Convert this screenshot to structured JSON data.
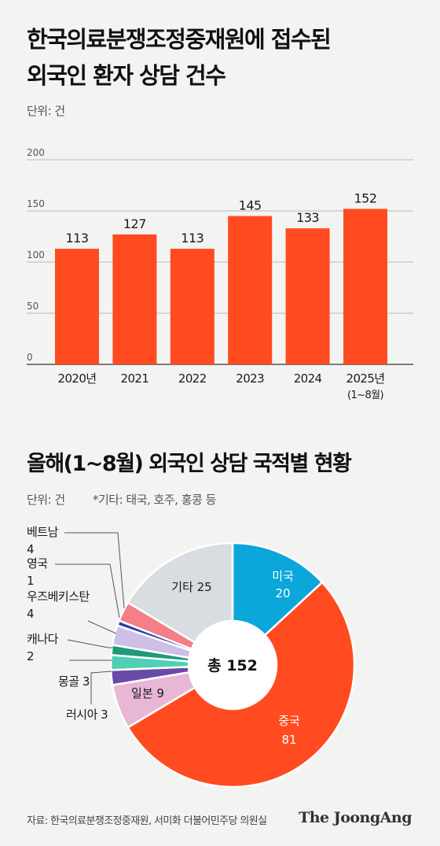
{
  "chart1": {
    "title_line1": "한국의료분쟁조정중재원에 접수된",
    "title_line2": "외국인 환자 상담 건수",
    "unit": "단위: 건"
  },
  "chart2": {
    "title": "올해(1~8월) 외국인 상담 국적별 현황",
    "unit": "단위: 건",
    "note": "*기타: 태국, 호주, 홍콩 등",
    "center_label": "총 152"
  },
  "footer": {
    "source": "자료: 한국의료분쟁조정중재원, 서미화 더불어민주당 의원실",
    "brand": "The JoongAng"
  },
  "chart_data": [
    {
      "type": "bar",
      "categories": [
        "2020년",
        "2021",
        "2022",
        "2023",
        "2024",
        "2025년 (1~8월)"
      ],
      "values": [
        113,
        127,
        113,
        145,
        133,
        152
      ],
      "ylim": [
        0,
        200
      ],
      "yticks": [
        0,
        50,
        100,
        150,
        200
      ],
      "grid": true,
      "color": "#ff4b1f"
    },
    {
      "type": "pie",
      "total": 152,
      "slices": [
        {
          "label": "미국",
          "value": 20,
          "color": "#0ba7db",
          "inside": true
        },
        {
          "label": "중국",
          "value": 81,
          "color": "#ff4b1f",
          "inside": true
        },
        {
          "label": "일본",
          "value": 9,
          "color": "#e8b7d6",
          "inside": true
        },
        {
          "label": "러시아",
          "value": 3,
          "color": "#6a4aa8",
          "inside": false
        },
        {
          "label": "몽골",
          "value": 3,
          "color": "#4fcfb3",
          "inside": false
        },
        {
          "label": "캐나다",
          "value": 2,
          "color": "#1f9a7a",
          "inside": false
        },
        {
          "label": "우즈베키스탄",
          "value": 4,
          "color": "#cdbfe6",
          "inside": false
        },
        {
          "label": "영국",
          "value": 1,
          "color": "#2e3f9e",
          "inside": false
        },
        {
          "label": "베트남",
          "value": 4,
          "color": "#f47f88",
          "inside": false
        },
        {
          "label": "기타",
          "value": 25,
          "color": "#d8dde1",
          "inside": true
        }
      ]
    }
  ]
}
